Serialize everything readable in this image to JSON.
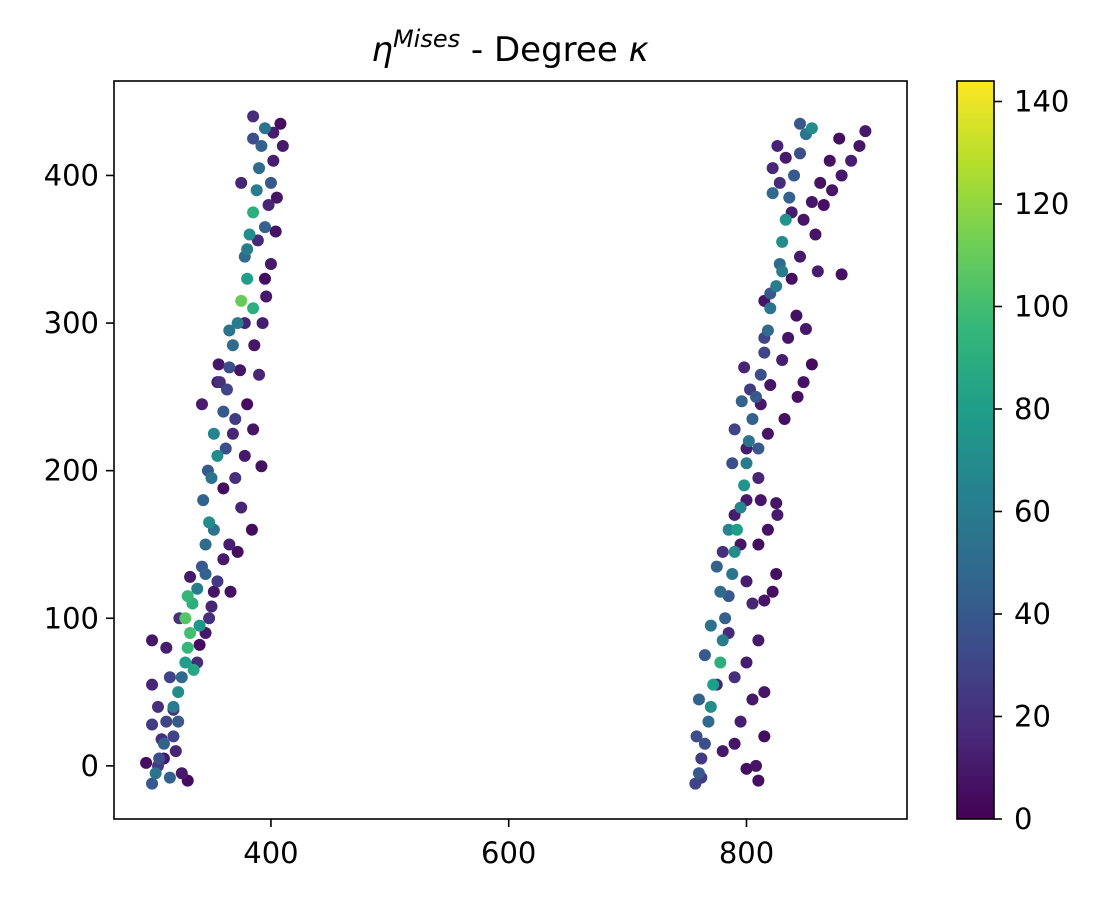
{
  "chart_data": {
    "type": "scatter",
    "title": {
      "symbol": "η",
      "superscript": "Mises",
      "rest": " - Degree ",
      "kappa": "κ"
    },
    "xlabel": "",
    "ylabel": "",
    "xlim": [
      268,
      935
    ],
    "ylim": [
      -36,
      464
    ],
    "x_ticks": [
      400,
      600,
      800
    ],
    "y_ticks": [
      0,
      100,
      200,
      300,
      400
    ],
    "colorbar": {
      "colormap": "viridis",
      "range": [
        0,
        144
      ],
      "ticks": [
        0,
        20,
        40,
        60,
        80,
        100,
        120,
        140
      ],
      "stops": [
        "#440154",
        "#482878",
        "#3e4989",
        "#31688e",
        "#26828e",
        "#1f9e89",
        "#35b779",
        "#6ece58",
        "#b5de2b",
        "#fde725"
      ]
    },
    "grid": false,
    "legend": "none",
    "series": [
      {
        "color_by": "degree",
        "points": [
          [
            300,
            -12,
            40
          ],
          [
            303,
            -5,
            55
          ],
          [
            306,
            5,
            35
          ],
          [
            310,
            15,
            45
          ],
          [
            312,
            30,
            30
          ],
          [
            318,
            40,
            60
          ],
          [
            322,
            50,
            70
          ],
          [
            325,
            60,
            50
          ],
          [
            328,
            70,
            80
          ],
          [
            330,
            80,
            95
          ],
          [
            332,
            90,
            100
          ],
          [
            328,
            100,
            105
          ],
          [
            334,
            110,
            90
          ],
          [
            338,
            120,
            60
          ],
          [
            342,
            135,
            40
          ],
          [
            345,
            150,
            50
          ],
          [
            348,
            165,
            70
          ],
          [
            343,
            180,
            45
          ],
          [
            350,
            195,
            55
          ],
          [
            355,
            210,
            70
          ],
          [
            352,
            225,
            65
          ],
          [
            360,
            240,
            40
          ],
          [
            363,
            255,
            30
          ],
          [
            365,
            270,
            35
          ],
          [
            368,
            285,
            50
          ],
          [
            372,
            300,
            60
          ],
          [
            375,
            315,
            110
          ],
          [
            380,
            330,
            80
          ],
          [
            378,
            345,
            50
          ],
          [
            382,
            360,
            70
          ],
          [
            385,
            375,
            90
          ],
          [
            388,
            390,
            60
          ],
          [
            390,
            405,
            50
          ],
          [
            392,
            420,
            45
          ],
          [
            395,
            432,
            55
          ],
          [
            318,
            20,
            30
          ],
          [
            305,
            0,
            25
          ],
          [
            315,
            -8,
            45
          ],
          [
            322,
            30,
            40
          ],
          [
            335,
            65,
            85
          ],
          [
            340,
            95,
            75
          ],
          [
            330,
            115,
            95
          ],
          [
            345,
            130,
            45
          ],
          [
            352,
            160,
            55
          ],
          [
            347,
            200,
            40
          ],
          [
            362,
            215,
            35
          ],
          [
            370,
            235,
            25
          ],
          [
            357,
            260,
            20
          ],
          [
            365,
            295,
            55
          ],
          [
            385,
            310,
            90
          ],
          [
            380,
            350,
            60
          ],
          [
            395,
            365,
            45
          ],
          [
            400,
            395,
            40
          ],
          [
            385,
            425,
            35
          ],
          [
            295,
            2,
            5
          ],
          [
            310,
            5,
            10
          ],
          [
            308,
            18,
            20
          ],
          [
            320,
            10,
            15
          ],
          [
            325,
            -5,
            10
          ],
          [
            330,
            -10,
            5
          ],
          [
            300,
            28,
            25
          ],
          [
            305,
            40,
            20
          ],
          [
            315,
            60,
            30
          ],
          [
            300,
            85,
            8
          ],
          [
            312,
            80,
            12
          ],
          [
            340,
            82,
            5
          ],
          [
            345,
            90,
            10
          ],
          [
            348,
            100,
            20
          ],
          [
            350,
            108,
            15
          ],
          [
            352,
            118,
            8
          ],
          [
            355,
            125,
            25
          ],
          [
            360,
            140,
            10
          ],
          [
            365,
            150,
            12
          ],
          [
            372,
            145,
            5
          ],
          [
            375,
            175,
            15
          ],
          [
            370,
            195,
            20
          ],
          [
            378,
            210,
            10
          ],
          [
            368,
            225,
            15
          ],
          [
            385,
            228,
            8
          ],
          [
            380,
            245,
            5
          ],
          [
            355,
            260,
            10
          ],
          [
            390,
            265,
            15
          ],
          [
            386,
            285,
            8
          ],
          [
            393,
            300,
            12
          ],
          [
            395,
            330,
            5
          ],
          [
            400,
            340,
            10
          ],
          [
            398,
            380,
            15
          ],
          [
            405,
            385,
            8
          ],
          [
            402,
            410,
            12
          ],
          [
            408,
            435,
            5
          ],
          [
            410,
            420,
            10
          ],
          [
            385,
            440,
            20
          ],
          [
            375,
            395,
            15
          ],
          [
            360,
            188,
            5
          ],
          [
            332,
            128,
            10
          ],
          [
            323,
            100,
            20
          ],
          [
            300,
            55,
            15
          ],
          [
            318,
            38,
            22
          ],
          [
            338,
            70,
            18
          ],
          [
            366,
            118,
            6
          ],
          [
            384,
            160,
            4
          ],
          [
            392,
            203,
            6
          ],
          [
            374,
            268,
            8
          ],
          [
            396,
            318,
            10
          ],
          [
            404,
            362,
            7
          ],
          [
            342,
            245,
            12
          ],
          [
            356,
            272,
            9
          ],
          [
            378,
            300,
            14
          ],
          [
            389,
            356,
            16
          ],
          [
            402,
            429,
            11
          ],
          [
            757,
            -12,
            30
          ],
          [
            760,
            -5,
            40
          ],
          [
            762,
            5,
            25
          ],
          [
            765,
            15,
            35
          ],
          [
            768,
            30,
            50
          ],
          [
            770,
            40,
            70
          ],
          [
            772,
            55,
            80
          ],
          [
            778,
            70,
            90
          ],
          [
            780,
            85,
            60
          ],
          [
            782,
            100,
            45
          ],
          [
            785,
            115,
            40
          ],
          [
            788,
            130,
            55
          ],
          [
            790,
            145,
            70
          ],
          [
            792,
            160,
            80
          ],
          [
            795,
            175,
            65
          ],
          [
            798,
            190,
            75
          ],
          [
            800,
            205,
            60
          ],
          [
            802,
            220,
            55
          ],
          [
            805,
            235,
            45
          ],
          [
            808,
            250,
            40
          ],
          [
            812,
            265,
            35
          ],
          [
            815,
            280,
            30
          ],
          [
            818,
            295,
            50
          ],
          [
            820,
            310,
            55
          ],
          [
            825,
            325,
            60
          ],
          [
            828,
            340,
            50
          ],
          [
            830,
            355,
            70
          ],
          [
            833,
            370,
            75
          ],
          [
            836,
            385,
            45
          ],
          [
            840,
            400,
            40
          ],
          [
            845,
            415,
            35
          ],
          [
            850,
            428,
            55
          ],
          [
            855,
            432,
            70
          ],
          [
            830,
            335,
            60
          ],
          [
            820,
            320,
            40
          ],
          [
            815,
            290,
            30
          ],
          [
            803,
            255,
            25
          ],
          [
            790,
            228,
            30
          ],
          [
            788,
            205,
            35
          ],
          [
            775,
            135,
            45
          ],
          [
            770,
            95,
            55
          ],
          [
            765,
            75,
            40
          ],
          [
            760,
            45,
            45
          ],
          [
            758,
            20,
            35
          ],
          [
            762,
            -8,
            25
          ],
          [
            845,
            435,
            40
          ],
          [
            822,
            388,
            50
          ],
          [
            810,
            215,
            40
          ],
          [
            785,
            160,
            65
          ],
          [
            778,
            118,
            50
          ],
          [
            796,
            247,
            45
          ],
          [
            780,
            10,
            10
          ],
          [
            790,
            15,
            8
          ],
          [
            800,
            -2,
            5
          ],
          [
            808,
            0,
            8
          ],
          [
            810,
            -10,
            6
          ],
          [
            815,
            20,
            5
          ],
          [
            795,
            30,
            12
          ],
          [
            805,
            45,
            10
          ],
          [
            815,
            50,
            8
          ],
          [
            775,
            55,
            15
          ],
          [
            790,
            60,
            20
          ],
          [
            800,
            70,
            12
          ],
          [
            810,
            85,
            10
          ],
          [
            785,
            90,
            18
          ],
          [
            805,
            110,
            15
          ],
          [
            815,
            112,
            8
          ],
          [
            822,
            118,
            5
          ],
          [
            800,
            125,
            12
          ],
          [
            825,
            130,
            6
          ],
          [
            780,
            145,
            20
          ],
          [
            795,
            150,
            8
          ],
          [
            810,
            150,
            5
          ],
          [
            818,
            160,
            6
          ],
          [
            790,
            170,
            12
          ],
          [
            800,
            180,
            10
          ],
          [
            825,
            178,
            8
          ],
          [
            810,
            195,
            15
          ],
          [
            800,
            215,
            12
          ],
          [
            818,
            225,
            8
          ],
          [
            832,
            235,
            6
          ],
          [
            812,
            245,
            10
          ],
          [
            820,
            258,
            8
          ],
          [
            798,
            270,
            15
          ],
          [
            830,
            275,
            12
          ],
          [
            835,
            290,
            8
          ],
          [
            850,
            296,
            10
          ],
          [
            842,
            305,
            6
          ],
          [
            815,
            315,
            8
          ],
          [
            838,
            330,
            5
          ],
          [
            860,
            335,
            12
          ],
          [
            880,
            333,
            6
          ],
          [
            845,
            345,
            10
          ],
          [
            858,
            360,
            8
          ],
          [
            865,
            380,
            6
          ],
          [
            872,
            390,
            8
          ],
          [
            880,
            400,
            10
          ],
          [
            888,
            410,
            12
          ],
          [
            895,
            420,
            8
          ],
          [
            900,
            430,
            10
          ],
          [
            878,
            425,
            5
          ],
          [
            870,
            410,
            6
          ],
          [
            862,
            395,
            7
          ],
          [
            855,
            382,
            9
          ],
          [
            848,
            370,
            8
          ],
          [
            838,
            375,
            12
          ],
          [
            833,
            412,
            10
          ],
          [
            826,
            420,
            14
          ],
          [
            822,
            405,
            16
          ],
          [
            828,
            395,
            18
          ],
          [
            843,
            250,
            6
          ],
          [
            855,
            272,
            4
          ],
          [
            848,
            260,
            7
          ],
          [
            812,
            180,
            9
          ],
          [
            826,
            170,
            11
          ]
        ]
      }
    ]
  }
}
